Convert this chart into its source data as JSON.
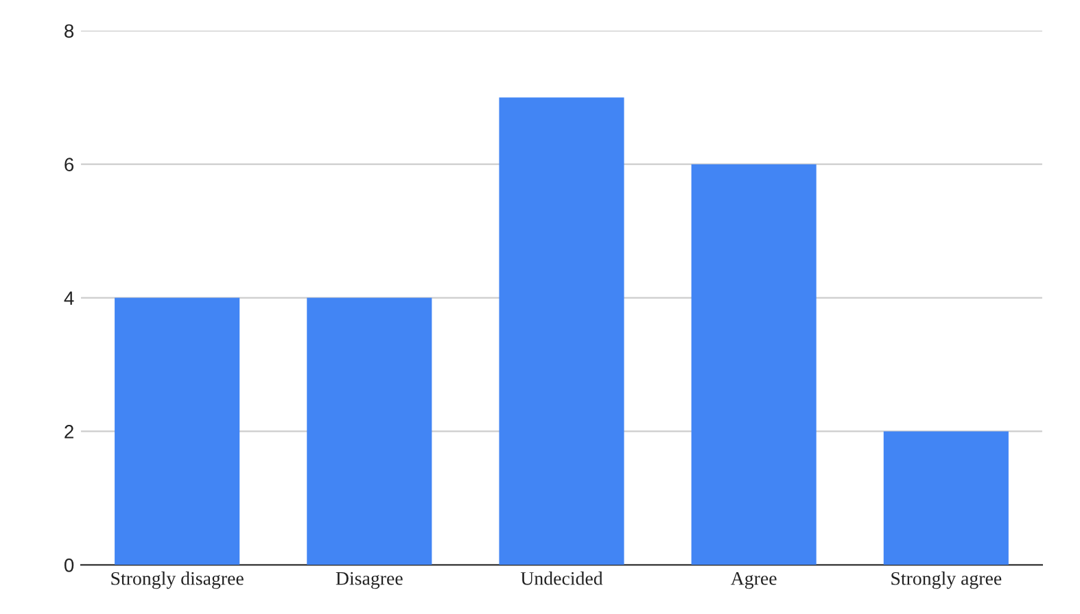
{
  "chart_data": {
    "type": "bar",
    "categories": [
      "Strongly disagree",
      "Disagree",
      "Undecided",
      "Agree",
      "Strongly agree"
    ],
    "values": [
      4,
      4,
      7,
      6,
      2
    ],
    "color": "#4285f4",
    "ylim": [
      0,
      8
    ],
    "yticks": [
      0,
      2,
      4,
      6,
      8
    ],
    "grid": "y",
    "legend": false
  }
}
